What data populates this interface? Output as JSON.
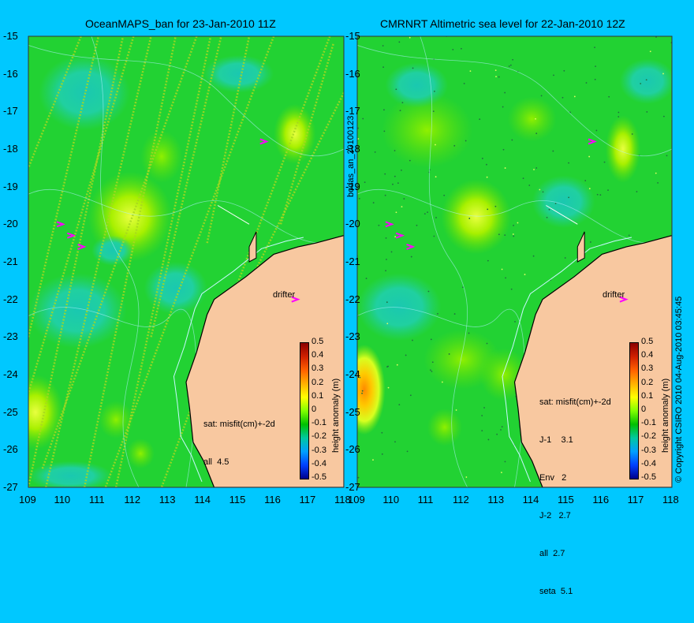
{
  "titles": {
    "left": "OceanMAPS_ban for 23-Jan-2010 11Z",
    "right": "CMRNRT Altimetric sea level  for 22-Jan-2010 12Z"
  },
  "side_labels": {
    "file": "bodas_an_20100123",
    "copyright": "© Copyright CSIRO 2010   04-Aug-2010 03:45:45"
  },
  "axes": {
    "y_ticks": [
      "-15",
      "-16",
      "-17",
      "-18",
      "-19",
      "-20",
      "-21",
      "-22",
      "-23",
      "-24",
      "-25",
      "-26",
      "-27"
    ],
    "x_ticks": [
      "109",
      "110",
      "111",
      "112",
      "113",
      "114",
      "115",
      "116",
      "117",
      "118"
    ]
  },
  "drifter_label": "drifter",
  "left_panel": {
    "stats": [
      "sat: misfit(cm)+-2d",
      "all  4.5"
    ]
  },
  "right_panel": {
    "stats": [
      "sat: misfit(cm)+-2d",
      "J-1    3.1",
      "Env   2",
      "J-2   2.7",
      "all  2.7",
      "seta  5.1"
    ]
  },
  "colorbar": {
    "label": "height anomaly (m)",
    "ticks": [
      "0.5",
      "0.4",
      "0.3",
      "0.2",
      "0.1",
      "0",
      "-0.1",
      "-0.2",
      "-0.3",
      "-0.4",
      "-0.5"
    ],
    "colors": [
      "#8b0000",
      "#d02000",
      "#ff6000",
      "#ffb000",
      "#ffff00",
      "#80ff00",
      "#00c000",
      "#00c8a0",
      "#00a0ff",
      "#0040ff",
      "#00008b"
    ]
  },
  "colors": {
    "background": "#00c8ff",
    "land": "#f8c8a0",
    "ocean_base": "#22d233",
    "drifter": "#ff00ff"
  }
}
